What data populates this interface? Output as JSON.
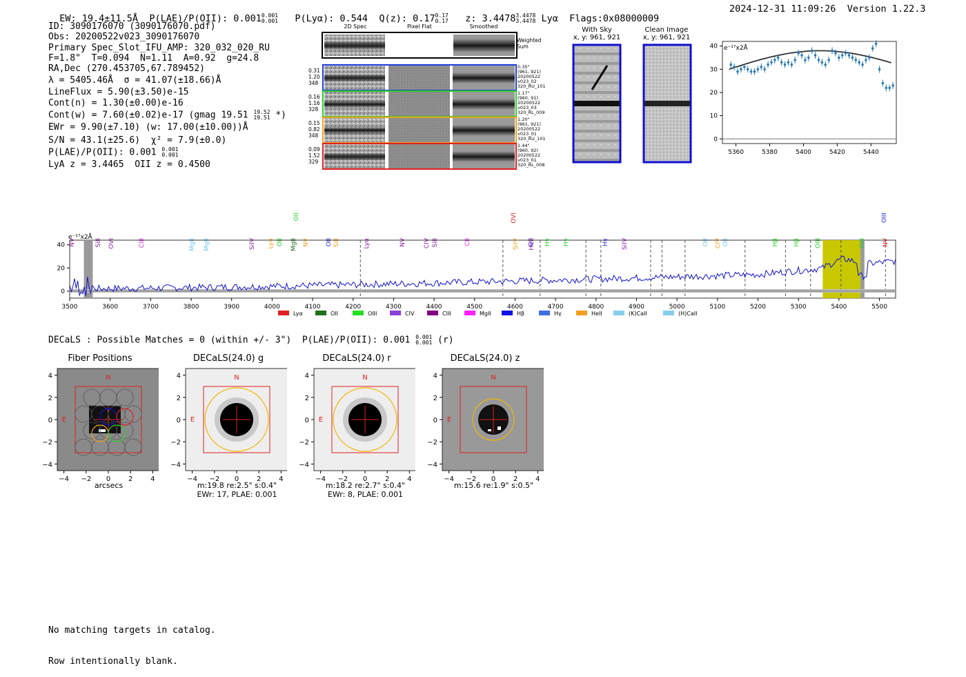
{
  "header": {
    "ew": "EW: 19.4±11.5Å",
    "plae_label": "P(LAE)/P(OII): 0.001",
    "plae_hi": "0.001",
    "plae_lo": "0.001",
    "plya": "P(Lyα): 0.544",
    "qz_label": "Q(z): 0.17",
    "qz_hi": "0.17",
    "qz_lo": "0.17",
    "z_label": "z: 3.4478",
    "z_hi": "3.4478",
    "z_lo": "3.4478",
    "line": "Lyα",
    "flags": "Flags:0x08000009",
    "timestamp": "2024-12-31 11:09:26",
    "version": "Version 1.22.3"
  },
  "info": {
    "id": "ID: 3090176070 (3090176070.pdf)",
    "obs": "Obs: 20200522v023_3090176070",
    "spec": "Primary Spec_Slot_IFU_AMP: 320_032_020_RU",
    "fiber": "F=1.8\"  T=0.094  N=1.11  A=0.92  g=24.8",
    "radec": "RA,Dec (270.453705,67.789452)",
    "lambda": "λ = 5405.46Å  σ = 41.07(±18.66)Å",
    "lineflux": "LineFlux = 5.90(±3.50)e-15",
    "cont_n": "Cont(n) = 1.30(±0.00)e-16",
    "cont_w": "Cont(w) = 7.60(±0.02)e-17 (gmag 19.51",
    "cont_w_hi": "19.52",
    "cont_w_lo": "19.51",
    "cont_w_end": " *)",
    "ewr": "EWr = 9.90(±7.10) (w: 17.00(±10.00))Å",
    "sn": "S/N = 43.1(±25.6)  χ² = 7.9(±0.0)",
    "plae": "P(LAE)/P(OII): 0.001",
    "plae_hi": "0.001",
    "plae_lo": "0.001",
    "z": "LyA z = 3.4465  OII z = 0.4500"
  },
  "cutouts": {
    "col_headers": [
      "2D Spec",
      "Pixel Flat",
      "Smoothed"
    ],
    "weighted_sum": "Weighted\nSum",
    "rows": [
      {
        "nums": [
          "0.31",
          "1.20",
          "348"
        ],
        "side": "0.35\"\n(961, 921)\n20200522\nv023_02\n320_RU_101",
        "color": "#1f3fd8"
      },
      {
        "nums": [
          "0.16",
          "1.16",
          "328"
        ],
        "side": "1.17\"\n(960, 91)\n20200522\nv023_03\n320_RL_009",
        "color": "#2bd02b"
      },
      {
        "nums": [
          "0.15",
          "0.82",
          "348"
        ],
        "side": "1.20\"\n(961, 921)\n20200522\nv023_01\n320_RU_101",
        "color": "#f0a020"
      },
      {
        "nums": [
          "0.09",
          "1.52",
          "329"
        ],
        "side": "1.44\"\n(960, 92)\n20200522\nv023_01\n320_RL_008",
        "color": "#e02020"
      }
    ]
  },
  "sky": {
    "with_sky_title": "With Sky",
    "with_sky_xy": "x, y: 961, 921",
    "clean_title": "Clean Image",
    "clean_xy": "x, y: 961, 921"
  },
  "zoom_plot": {
    "ylabel": "e⁻¹⁷x2Å",
    "x_ticks": [
      "5360",
      "5380",
      "5400",
      "5420",
      "5440"
    ],
    "y_ticks": [
      "0",
      "10",
      "20",
      "30",
      "40"
    ]
  },
  "spectrum": {
    "ylabel": "e⁻¹⁷x2Å",
    "x_ticks": [
      "3500",
      "3600",
      "3700",
      "3800",
      "3900",
      "4000",
      "4100",
      "4200",
      "4300",
      "4400",
      "4500",
      "4600",
      "4700",
      "4800",
      "4900",
      "5000",
      "5100",
      "5200",
      "5300",
      "5400",
      "5500"
    ],
    "y_ticks": [
      "0",
      "20",
      "40"
    ],
    "line_labels": [
      {
        "t": "NV",
        "c": "#8a1fa8"
      },
      {
        "t": "SiII",
        "c": "#8a1fa8"
      },
      {
        "t": "OVI",
        "c": "#8a1fa8"
      },
      {
        "t": "CIII",
        "c": "#e020e0"
      },
      {
        "t": "MgII",
        "c": "#6fc8f0"
      },
      {
        "t": "MgII",
        "c": "#6fc8f0"
      },
      {
        "t": "SiIV",
        "c": "#8a1fa8"
      },
      {
        "t": "Lyα",
        "c": "#f0a020"
      },
      {
        "t": "OII",
        "c": "#20d020"
      },
      {
        "t": "MgII",
        "c": "#207020"
      },
      {
        "t": "OII",
        "c": "#20d020"
      },
      {
        "t": "NV",
        "c": "#f0a020"
      },
      {
        "t": "OII",
        "c": "#1f1fd0"
      },
      {
        "t": "SiII",
        "c": "#f0a020"
      },
      {
        "t": "Lyα",
        "c": "#8a1fa8"
      },
      {
        "t": "NV",
        "c": "#8a1fa8"
      },
      {
        "t": "CIV",
        "c": "#8a1fa8"
      },
      {
        "t": "SiII",
        "c": "#8a1fa8"
      },
      {
        "t": "CII",
        "c": "#e020e0"
      },
      {
        "t": "SiIV",
        "c": "#f0a020"
      },
      {
        "t": "OVI",
        "c": "#e02020"
      },
      {
        "t": "OII",
        "c": "#1f1fd0"
      },
      {
        "t": "HeII",
        "c": "#8a1fa8"
      },
      {
        "t": "Hγ",
        "c": "#20d020"
      },
      {
        "t": "Hγ",
        "c": "#20d020"
      },
      {
        "t": "Hγ",
        "c": "#1f1fd0"
      },
      {
        "t": "SiIV",
        "c": "#8a1fa8"
      },
      {
        "t": "OII",
        "c": "#6fc8f0"
      },
      {
        "t": "CIV",
        "c": "#f0a020"
      },
      {
        "t": "OII",
        "c": "#6fc8f0"
      },
      {
        "t": "Hβ",
        "c": "#20d020"
      },
      {
        "t": "Hβ",
        "c": "#20d020"
      },
      {
        "t": "OIII",
        "c": "#20d020"
      },
      {
        "t": "OIII",
        "c": "#20d020"
      },
      {
        "t": "OIII",
        "c": "#1f1fd0"
      },
      {
        "t": "NV",
        "c": "#e02020"
      }
    ],
    "legend": [
      {
        "t": "Lyα",
        "c": "#e02020"
      },
      {
        "t": "OII",
        "c": "#207020"
      },
      {
        "t": "OIII",
        "c": "#20e020"
      },
      {
        "t": "CIV",
        "c": "#8a3fd8"
      },
      {
        "t": "CIII",
        "c": "#800080"
      },
      {
        "t": "MgII",
        "c": "#ff20ff"
      },
      {
        "t": "Hβ",
        "c": "#1010e0"
      },
      {
        "t": "Hγ",
        "c": "#4070e0"
      },
      {
        "t": "HeII",
        "c": "#f0a020"
      },
      {
        "t": "(K)CaII",
        "c": "#87ceeb"
      },
      {
        "t": "(H)CaII",
        "c": "#87ceeb"
      }
    ]
  },
  "decals": {
    "summary": "DECaLS : Possible Matches = 0 (within +/- 3\")  P(LAE)/P(OII): 0.001",
    "summary_hi": "0.001",
    "summary_lo": "0.001",
    "summary_end": " (r)",
    "panels": [
      {
        "title": "Fiber Positions",
        "cap1": "arcsecs",
        "cap2": ""
      },
      {
        "title": "DECaLS(24.0) g",
        "cap1": "m:19.8  re:2.5\"  s:0.4\"",
        "cap2": "EWr: 17, PLAE: 0.001"
      },
      {
        "title": "DECaLS(24.0) r",
        "cap1": "m:18.2  re:2.7\"  s:0.4\"",
        "cap2": "EWr: 8, PLAE: 0.001"
      },
      {
        "title": "DECaLS(24.0) z",
        "cap1": "m:15.6  re:1.9\"  s:0.5\"",
        "cap2": ""
      }
    ],
    "x_ticks": [
      "−4",
      "−2",
      "0",
      "2",
      "4"
    ],
    "y_ticks": [
      "4",
      "2",
      "0",
      "−2",
      "−4"
    ],
    "north": "N",
    "east": "E"
  },
  "footer": {
    "line1": "No matching targets in catalog.",
    "line2": "Row intentionally blank."
  }
}
